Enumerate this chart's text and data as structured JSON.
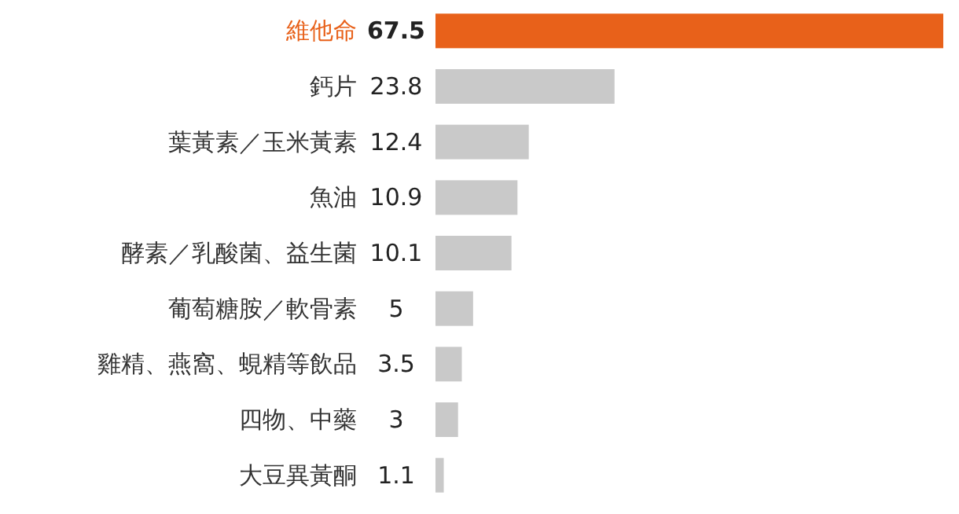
{
  "chart_data": {
    "type": "bar",
    "orientation": "horizontal",
    "data_labels": true,
    "categories": [
      "維他命",
      "鈣片",
      "葉黃素／玉米黃素",
      "魚油",
      "酵素／乳酸菌、益生菌",
      "葡萄糖胺／軟骨素",
      "雞精、燕窩、蜆精等飲品",
      "四物、中藥",
      "大豆異黃酮"
    ],
    "values": [
      67.5,
      23.8,
      12.4,
      10.9,
      10.1,
      5,
      3.5,
      3,
      1.1
    ],
    "colors": [
      "#e8611a",
      "#c9c9c9",
      "#c9c9c9",
      "#c9c9c9",
      "#c9c9c9",
      "#c9c9c9",
      "#c9c9c9",
      "#c9c9c9",
      "#c9c9c9"
    ]
  }
}
